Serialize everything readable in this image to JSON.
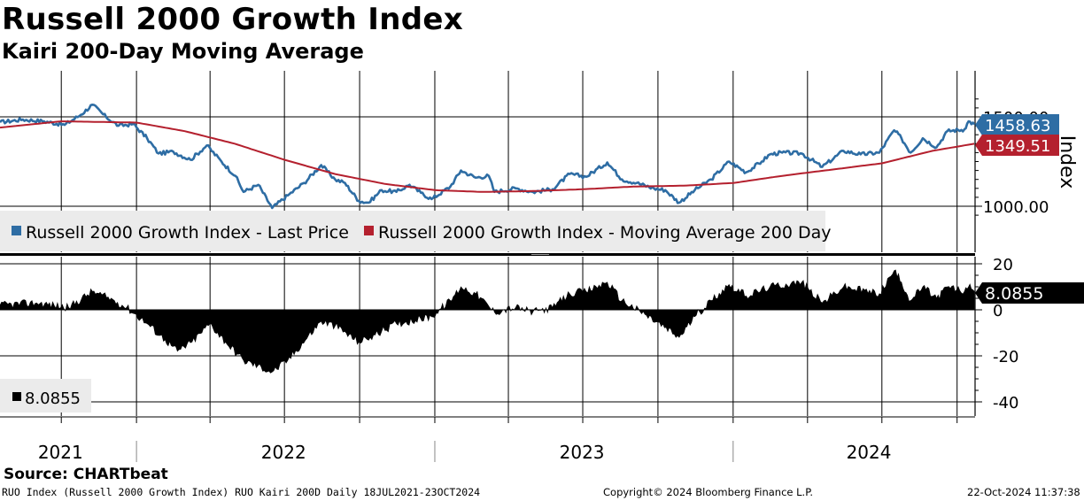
{
  "chart_data": [
    {
      "type": "line",
      "title": "Russell 2000 Growth Index",
      "subtitle": "Kairi 200-Day Moving Average",
      "ylabel": "Index",
      "ylim": [
        940,
        1640
      ],
      "y_ticks": [
        1000,
        1500
      ],
      "y_tick_labels": [
        "1000.00",
        "1500.00"
      ],
      "legend_placement": "bottom-left",
      "grid": true,
      "series": [
        {
          "name": "Russell 2000 Growth Index - Last Price",
          "color": "#2E6DA4",
          "last_value_label": "1458.63",
          "points": [
            [
              "2021-07-18",
              1470
            ],
            [
              "2021-08-15",
              1485
            ],
            [
              "2021-09-10",
              1475
            ],
            [
              "2021-10-05",
              1455
            ],
            [
              "2021-10-25",
              1512
            ],
            [
              "2021-11-08",
              1568
            ],
            [
              "2021-11-25",
              1498
            ],
            [
              "2021-12-10",
              1450
            ],
            [
              "2021-12-28",
              1460
            ],
            [
              "2022-01-14",
              1380
            ],
            [
              "2022-01-28",
              1295
            ],
            [
              "2022-02-15",
              1305
            ],
            [
              "2022-03-08",
              1260
            ],
            [
              "2022-03-28",
              1340
            ],
            [
              "2022-04-15",
              1250
            ],
            [
              "2022-05-02",
              1170
            ],
            [
              "2022-05-12",
              1080
            ],
            [
              "2022-05-30",
              1120
            ],
            [
              "2022-06-16",
              990
            ],
            [
              "2022-07-05",
              1060
            ],
            [
              "2022-07-25",
              1130
            ],
            [
              "2022-08-15",
              1230
            ],
            [
              "2022-09-01",
              1150
            ],
            [
              "2022-09-13",
              1130
            ],
            [
              "2022-09-30",
              1030
            ],
            [
              "2022-10-12",
              1020
            ],
            [
              "2022-10-28",
              1090
            ],
            [
              "2022-11-15",
              1080
            ],
            [
              "2022-12-01",
              1120
            ],
            [
              "2022-12-15",
              1075
            ],
            [
              "2022-12-28",
              1040
            ],
            [
              "2023-01-20",
              1110
            ],
            [
              "2023-02-02",
              1200
            ],
            [
              "2023-02-20",
              1160
            ],
            [
              "2023-03-08",
              1170
            ],
            [
              "2023-03-15",
              1080
            ],
            [
              "2023-04-10",
              1100
            ],
            [
              "2023-05-01",
              1080
            ],
            [
              "2023-05-25",
              1095
            ],
            [
              "2023-06-15",
              1180
            ],
            [
              "2023-07-05",
              1165
            ],
            [
              "2023-07-31",
              1245
            ],
            [
              "2023-08-18",
              1150
            ],
            [
              "2023-09-05",
              1130
            ],
            [
              "2023-09-26",
              1100
            ],
            [
              "2023-10-10",
              1090
            ],
            [
              "2023-10-27",
              1020
            ],
            [
              "2023-11-15",
              1090
            ],
            [
              "2023-12-05",
              1150
            ],
            [
              "2023-12-27",
              1250
            ],
            [
              "2024-01-17",
              1190
            ],
            [
              "2024-02-05",
              1250
            ],
            [
              "2024-02-15",
              1290
            ],
            [
              "2024-03-01",
              1300
            ],
            [
              "2024-03-25",
              1295
            ],
            [
              "2024-04-19",
              1220
            ],
            [
              "2024-05-15",
              1310
            ],
            [
              "2024-06-05",
              1290
            ],
            [
              "2024-06-28",
              1300
            ],
            [
              "2024-07-16",
              1425
            ],
            [
              "2024-07-25",
              1380
            ],
            [
              "2024-08-05",
              1300
            ],
            [
              "2024-08-20",
              1380
            ],
            [
              "2024-09-06",
              1330
            ],
            [
              "2024-09-19",
              1420
            ],
            [
              "2024-10-10",
              1430
            ],
            [
              "2024-10-15",
              1475
            ],
            [
              "2024-10-22",
              1458.63
            ]
          ]
        },
        {
          "name": "Russell 2000 Growth Index - Moving Average 200 Day",
          "color": "#B4202E",
          "last_value_label": "1349.51",
          "points": [
            [
              "2021-07-18",
              1440
            ],
            [
              "2021-10-01",
              1475
            ],
            [
              "2022-01-01",
              1468
            ],
            [
              "2022-03-01",
              1420
            ],
            [
              "2022-05-01",
              1350
            ],
            [
              "2022-07-01",
              1260
            ],
            [
              "2022-09-01",
              1180
            ],
            [
              "2022-11-01",
              1125
            ],
            [
              "2023-01-01",
              1090
            ],
            [
              "2023-03-01",
              1080
            ],
            [
              "2023-05-01",
              1085
            ],
            [
              "2023-07-01",
              1095
            ],
            [
              "2023-09-01",
              1110
            ],
            [
              "2023-11-01",
              1115
            ],
            [
              "2024-01-01",
              1130
            ],
            [
              "2024-03-01",
              1170
            ],
            [
              "2024-05-01",
              1205
            ],
            [
              "2024-07-01",
              1240
            ],
            [
              "2024-09-01",
              1310
            ],
            [
              "2024-10-22",
              1349.51
            ]
          ]
        }
      ]
    },
    {
      "type": "bar",
      "title": "Russell 2000 Growth Index Kairi 200-Day Moving Average",
      "ylim": [
        -40,
        20
      ],
      "y_ticks": [
        20,
        0,
        -20,
        -40
      ],
      "y_tick_labels": [
        "20",
        "0",
        "-20",
        "-40"
      ],
      "series": [
        {
          "name": "8.0855",
          "color": "#000000",
          "last_value_label": "8.0855",
          "points": [
            [
              "2021-07-18",
              2
            ],
            [
              "2021-09-01",
              3
            ],
            [
              "2021-10-10",
              1
            ],
            [
              "2021-11-08",
              8
            ],
            [
              "2021-12-05",
              4
            ],
            [
              "2021-12-20",
              1
            ],
            [
              "2022-01-14",
              -6
            ],
            [
              "2022-02-05",
              -13
            ],
            [
              "2022-02-20",
              -18
            ],
            [
              "2022-03-10",
              -14
            ],
            [
              "2022-04-01",
              -6
            ],
            [
              "2022-04-20",
              -14
            ],
            [
              "2022-05-12",
              -22
            ],
            [
              "2022-06-16",
              -27
            ],
            [
              "2022-07-05",
              -22
            ],
            [
              "2022-08-15",
              -5
            ],
            [
              "2022-09-01",
              -7
            ],
            [
              "2022-09-30",
              -14
            ],
            [
              "2022-10-14",
              -12
            ],
            [
              "2022-11-15",
              -6
            ],
            [
              "2022-12-28",
              -3
            ],
            [
              "2023-01-20",
              4
            ],
            [
              "2023-02-02",
              10
            ],
            [
              "2023-02-20",
              7
            ],
            [
              "2023-03-15",
              -1
            ],
            [
              "2023-04-10",
              1
            ],
            [
              "2023-05-01",
              -1
            ],
            [
              "2023-05-25",
              1
            ],
            [
              "2023-06-15",
              7
            ],
            [
              "2023-07-05",
              8
            ],
            [
              "2023-07-31",
              12
            ],
            [
              "2023-08-18",
              4
            ],
            [
              "2023-09-15",
              -2
            ],
            [
              "2023-10-27",
              -12
            ],
            [
              "2023-11-15",
              -3
            ],
            [
              "2023-12-05",
              4
            ],
            [
              "2023-12-27",
              11
            ],
            [
              "2024-01-17",
              6
            ],
            [
              "2024-02-15",
              10
            ],
            [
              "2024-03-25",
              12
            ],
            [
              "2024-04-19",
              3
            ],
            [
              "2024-05-15",
              10
            ],
            [
              "2024-06-28",
              7
            ],
            [
              "2024-07-16",
              17
            ],
            [
              "2024-07-25",
              12
            ],
            [
              "2024-08-05",
              4
            ],
            [
              "2024-08-20",
              10
            ],
            [
              "2024-09-06",
              5
            ],
            [
              "2024-09-19",
              10
            ],
            [
              "2024-10-10",
              8
            ],
            [
              "2024-10-15",
              10
            ],
            [
              "2024-10-22",
              8.0855
            ]
          ]
        }
      ]
    }
  ],
  "x_axis": {
    "range": [
      "2021-07-18",
      "2024-10-23"
    ],
    "year_labels": [
      {
        "label": "2021",
        "date": "2021-09-30"
      },
      {
        "label": "2022",
        "date": "2022-06-30"
      },
      {
        "label": "2023",
        "date": "2023-06-30"
      },
      {
        "label": "2024",
        "date": "2024-06-15"
      }
    ]
  },
  "colors": {
    "price": "#2E6DA4",
    "ma": "#B4202E",
    "kairi": "#000000",
    "legend_bg": "#EBEBEB"
  },
  "footer": {
    "source": "Source: CHARTbeat",
    "left": "RUO Index (Russell 2000 Growth Index) RUO Kairi 200D  Daily 18JUL2021-23OCT2024",
    "mid": "Copyright© 2024 Bloomberg Finance L.P.",
    "right": "22-Oct-2024 11:37:38"
  }
}
